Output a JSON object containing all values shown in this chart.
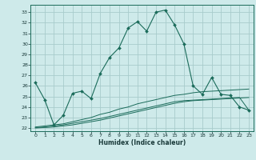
{
  "xlabel": "Humidex (Indice chaleur)",
  "bg_color": "#ceeaea",
  "grid_color": "#a8cccc",
  "line_color": "#1a6b5a",
  "x_ticks": [
    0,
    1,
    2,
    3,
    4,
    5,
    6,
    7,
    8,
    9,
    10,
    11,
    12,
    13,
    14,
    15,
    16,
    17,
    18,
    19,
    20,
    21,
    22,
    23
  ],
  "y_ticks": [
    22,
    23,
    24,
    25,
    26,
    27,
    28,
    29,
    30,
    31,
    32,
    33
  ],
  "xlim": [
    -0.5,
    23.5
  ],
  "ylim": [
    21.7,
    33.7
  ],
  "series1": [
    26.3,
    24.7,
    22.3,
    23.2,
    25.3,
    25.5,
    24.8,
    27.2,
    28.7,
    29.6,
    31.5,
    32.1,
    31.2,
    33.0,
    33.2,
    31.8,
    30.0,
    26.0,
    25.2,
    26.8,
    25.2,
    25.1,
    24.0,
    23.7
  ],
  "series2": [
    22.1,
    22.2,
    22.3,
    22.4,
    22.6,
    22.8,
    23.0,
    23.3,
    23.5,
    23.8,
    24.0,
    24.3,
    24.5,
    24.7,
    24.9,
    25.1,
    25.2,
    25.35,
    25.45,
    25.5,
    25.55,
    25.6,
    25.65,
    25.7
  ],
  "series3": [
    22.0,
    22.05,
    22.1,
    22.2,
    22.3,
    22.45,
    22.6,
    22.75,
    22.95,
    23.15,
    23.35,
    23.55,
    23.75,
    23.95,
    24.15,
    24.35,
    24.5,
    24.6,
    24.65,
    24.7,
    24.75,
    24.8,
    24.85,
    24.9
  ],
  "series4": [
    22.05,
    22.1,
    22.2,
    22.3,
    22.45,
    22.6,
    22.75,
    22.9,
    23.1,
    23.3,
    23.5,
    23.7,
    23.9,
    24.1,
    24.3,
    24.5,
    24.6,
    24.65,
    24.7,
    24.75,
    24.8,
    24.85,
    24.9,
    23.7
  ],
  "marker_x1": [
    0,
    1,
    2,
    3,
    4,
    5,
    6,
    7,
    8,
    9,
    10,
    11,
    12,
    13,
    14,
    15,
    16,
    17,
    18,
    19,
    20,
    21,
    22,
    23
  ],
  "marker_x_sparse": [
    0,
    2,
    4,
    6,
    8,
    10,
    12,
    14,
    16,
    18,
    20,
    22
  ]
}
